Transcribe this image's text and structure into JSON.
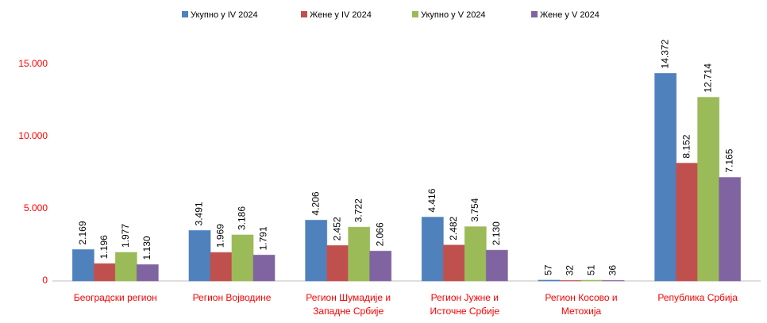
{
  "chart_data": {
    "type": "bar",
    "categories": [
      "Београдски регион",
      "Регион Војводине",
      "Регион Шумадије и\nЗападне Србије",
      "Регион Јужне и\nИсточне Србије",
      "Регион Косово и\nМетохија",
      "Република Србија"
    ],
    "series": [
      {
        "name": "Укупно у IV 2024",
        "color": "#4f81bd",
        "values": [
          2169,
          3491,
          4206,
          4416,
          57,
          14372
        ],
        "value_labels": [
          "2.169",
          "3.491",
          "4.206",
          "4.416",
          "57",
          "14.372"
        ]
      },
      {
        "name": "Жене у IV 2024",
        "color": "#c0504d",
        "values": [
          1196,
          1969,
          2452,
          2482,
          32,
          8152
        ],
        "value_labels": [
          "1.196",
          "1.969",
          "2.452",
          "2.482",
          "32",
          "8.152"
        ]
      },
      {
        "name": "Укупно у V 2024",
        "color": "#9bbb59",
        "values": [
          1977,
          3186,
          3722,
          3754,
          51,
          12714
        ],
        "value_labels": [
          "1.977",
          "3.186",
          "3.722",
          "3.754",
          "51",
          "12.714"
        ]
      },
      {
        "name": "Жене у V 2024",
        "color": "#8064a2",
        "values": [
          1130,
          1791,
          2066,
          2130,
          36,
          7165
        ],
        "value_labels": [
          "1.130",
          "1.791",
          "2.066",
          "2.130",
          "36",
          "7.165"
        ]
      }
    ],
    "ylim": [
      0,
      17000
    ],
    "yticks": [
      0,
      {
        "value": 5000,
        "label": "5.000"
      },
      {
        "value": 10000,
        "label": "10.000"
      },
      {
        "value": 15000,
        "label": "15.000"
      }
    ],
    "grid": false,
    "legend": "top"
  }
}
